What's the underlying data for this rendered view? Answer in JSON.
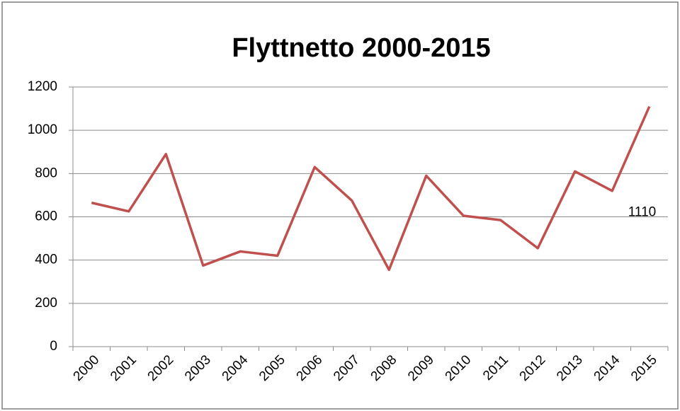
{
  "chart_data": {
    "type": "line",
    "title": "Flyttnetto 2000-2015",
    "categories": [
      "2000",
      "2001",
      "2002",
      "2003",
      "2004",
      "2005",
      "2006",
      "2007",
      "2008",
      "2009",
      "2010",
      "2011",
      "2012",
      "2013",
      "2014",
      "2015"
    ],
    "series": [
      {
        "name": "Flyttnetto",
        "color": "#c0504d",
        "values": [
          665,
          625,
          890,
          375,
          440,
          420,
          830,
          675,
          355,
          790,
          605,
          585,
          455,
          810,
          720,
          1110
        ]
      }
    ],
    "ylim": [
      0,
      1200
    ],
    "yticks": [
      0,
      200,
      400,
      600,
      800,
      1000,
      1200
    ],
    "grid": true,
    "data_label_index": 15
  }
}
